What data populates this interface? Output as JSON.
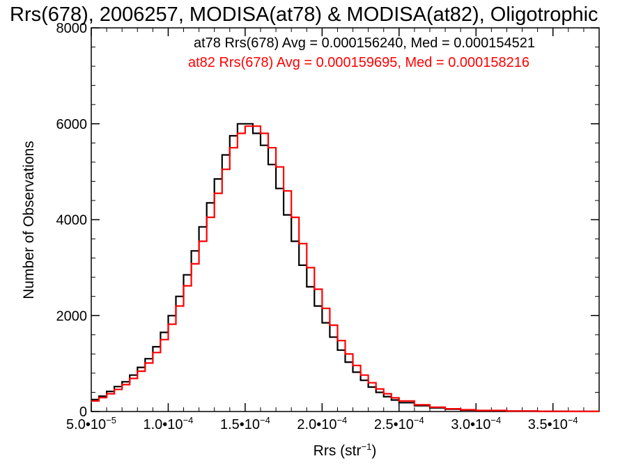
{
  "chart_data": {
    "type": "line",
    "step": true,
    "title": "Rrs(678), 2006257, MODISA(at78) & MODISA(at82), Oligotrophic",
    "xlabel": "Rrs (str",
    "xlabel_sup": "−1",
    "xlabel_end": ")",
    "ylabel": "Number of Observations",
    "xlim": [
      5e-05,
      0.00038
    ],
    "ylim": [
      0,
      8000
    ],
    "x_ticks": [
      {
        "value": 5e-05,
        "mant": "5.0•10",
        "exp": "−5"
      },
      {
        "value": 0.0001,
        "mant": "1.0•10",
        "exp": "−4"
      },
      {
        "value": 0.00015,
        "mant": "1.5•10",
        "exp": "−4"
      },
      {
        "value": 0.0002,
        "mant": "2.0•10",
        "exp": "−4"
      },
      {
        "value": 0.00025,
        "mant": "2.5•10",
        "exp": "−4"
      },
      {
        "value": 0.0003,
        "mant": "3.0•10",
        "exp": "−4"
      },
      {
        "value": 0.00035,
        "mant": "3.5•10",
        "exp": "−4"
      }
    ],
    "y_ticks": [
      {
        "value": 0,
        "label": "0"
      },
      {
        "value": 2000,
        "label": "2000"
      },
      {
        "value": 4000,
        "label": "4000"
      },
      {
        "value": 6000,
        "label": "6000"
      },
      {
        "value": 8000,
        "label": "8000"
      }
    ],
    "grid": false,
    "annotations": [
      {
        "text": "at78 Rrs(678) Avg = 0.000156240, Med = 0.000154521",
        "color": "#000000"
      },
      {
        "text": "at82 Rrs(678) Avg = 0.000159695, Med = 0.000158216",
        "color": "#ff0000"
      }
    ],
    "series": [
      {
        "color": "#000000",
        "points": [
          [
            5e-05,
            250
          ],
          [
            5.5e-05,
            320
          ],
          [
            6e-05,
            420
          ],
          [
            6.5e-05,
            520
          ],
          [
            7e-05,
            620
          ],
          [
            7.5e-05,
            760
          ],
          [
            8e-05,
            920
          ],
          [
            8.5e-05,
            1100
          ],
          [
            9e-05,
            1350
          ],
          [
            9.5e-05,
            1650
          ],
          [
            0.0001,
            2000
          ],
          [
            0.000105,
            2400
          ],
          [
            0.00011,
            2850
          ],
          [
            0.000115,
            3350
          ],
          [
            0.00012,
            3850
          ],
          [
            0.000125,
            4350
          ],
          [
            0.00013,
            4850
          ],
          [
            0.000135,
            5350
          ],
          [
            0.00014,
            5750
          ],
          [
            0.000145,
            6000
          ],
          [
            0.00015,
            6000
          ],
          [
            0.000155,
            5800
          ],
          [
            0.00016,
            5550
          ],
          [
            0.000165,
            5150
          ],
          [
            0.00017,
            4650
          ],
          [
            0.000175,
            4100
          ],
          [
            0.00018,
            3550
          ],
          [
            0.000185,
            3050
          ],
          [
            0.00019,
            2600
          ],
          [
            0.000195,
            2200
          ],
          [
            0.0002,
            1850
          ],
          [
            0.000205,
            1550
          ],
          [
            0.00021,
            1280
          ],
          [
            0.000215,
            1030
          ],
          [
            0.00022,
            820
          ],
          [
            0.000225,
            650
          ],
          [
            0.00023,
            510
          ],
          [
            0.000235,
            400
          ],
          [
            0.00024,
            310
          ],
          [
            0.000245,
            240
          ],
          [
            0.00025,
            185
          ],
          [
            0.00026,
            120
          ],
          [
            0.00027,
            75
          ],
          [
            0.00028,
            48
          ],
          [
            0.00029,
            30
          ],
          [
            0.0003,
            18
          ],
          [
            0.00032,
            8
          ],
          [
            0.00034,
            4
          ],
          [
            0.00036,
            2
          ],
          [
            0.00038,
            1
          ]
        ]
      },
      {
        "color": "#ff0000",
        "points": [
          [
            5e-05,
            220
          ],
          [
            5.5e-05,
            290
          ],
          [
            6e-05,
            370
          ],
          [
            6.5e-05,
            460
          ],
          [
            7e-05,
            560
          ],
          [
            7.5e-05,
            690
          ],
          [
            8e-05,
            840
          ],
          [
            8.5e-05,
            1010
          ],
          [
            9e-05,
            1230
          ],
          [
            9.5e-05,
            1500
          ],
          [
            0.0001,
            1820
          ],
          [
            0.000105,
            2200
          ],
          [
            0.00011,
            2620
          ],
          [
            0.000115,
            3080
          ],
          [
            0.00012,
            3550
          ],
          [
            0.000125,
            4050
          ],
          [
            0.00013,
            4550
          ],
          [
            0.000135,
            5050
          ],
          [
            0.00014,
            5500
          ],
          [
            0.000145,
            5800
          ],
          [
            0.00015,
            5950
          ],
          [
            0.000155,
            5950
          ],
          [
            0.00016,
            5800
          ],
          [
            0.000165,
            5500
          ],
          [
            0.00017,
            5100
          ],
          [
            0.000175,
            4600
          ],
          [
            0.00018,
            4050
          ],
          [
            0.000185,
            3500
          ],
          [
            0.00019,
            3000
          ],
          [
            0.000195,
            2550
          ],
          [
            0.0002,
            2150
          ],
          [
            0.000205,
            1800
          ],
          [
            0.00021,
            1480
          ],
          [
            0.000215,
            1200
          ],
          [
            0.00022,
            960
          ],
          [
            0.000225,
            760
          ],
          [
            0.00023,
            600
          ],
          [
            0.000235,
            470
          ],
          [
            0.00024,
            370
          ],
          [
            0.000245,
            285
          ],
          [
            0.00025,
            220
          ],
          [
            0.00026,
            140
          ],
          [
            0.00027,
            90
          ],
          [
            0.00028,
            57
          ],
          [
            0.00029,
            36
          ],
          [
            0.0003,
            22
          ],
          [
            0.00032,
            10
          ],
          [
            0.00034,
            5
          ],
          [
            0.00036,
            2
          ],
          [
            0.00038,
            1
          ]
        ]
      }
    ]
  }
}
